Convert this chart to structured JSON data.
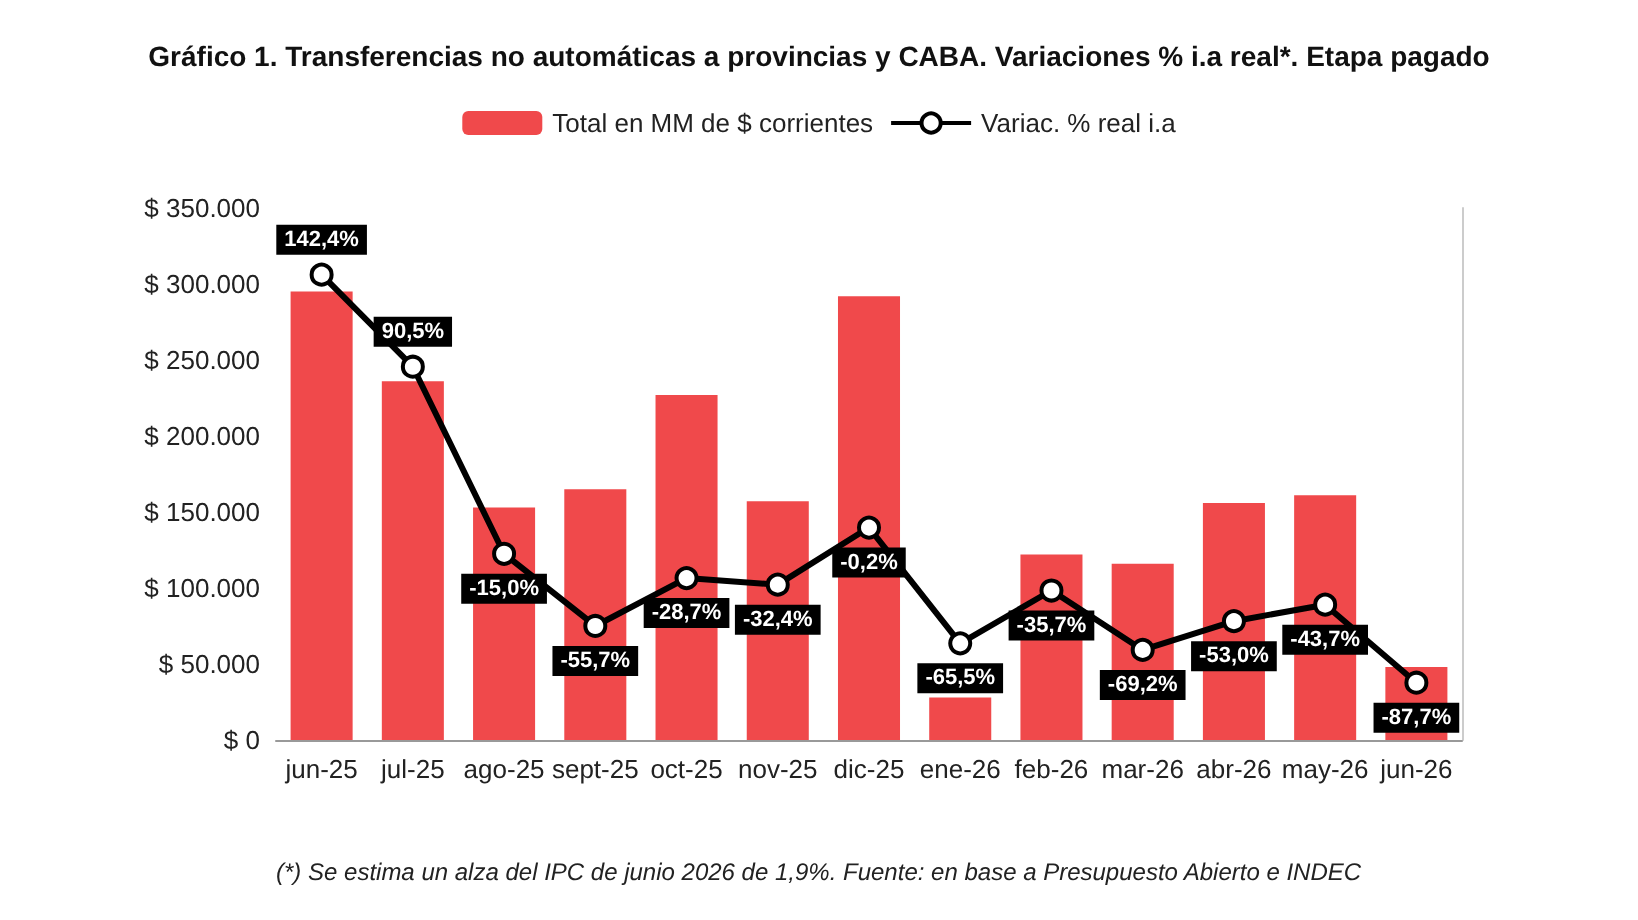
{
  "chart_data": {
    "type": "bar",
    "title": "Gráfico 1. Transferencias no automáticas a provincias y CABA. Variaciones % i.a real*. Etapa pagado",
    "categories": [
      "jun-25",
      "jul-25",
      "ago-25",
      "sept-25",
      "oct-25",
      "nov-25",
      "dic-25",
      "ene-26",
      "feb-26",
      "mar-26",
      "abr-26",
      "may-26",
      "jun-26"
    ],
    "series": [
      {
        "name": "Total en MM de $ corrientes",
        "color": "#f0494b",
        "values": [
          295000,
          236000,
          153000,
          165000,
          227000,
          157000,
          292000,
          28000,
          122000,
          116000,
          156000,
          161000,
          48000
        ]
      },
      {
        "name": "Variac. % real i.a",
        "type": "line",
        "axis": "y2",
        "color": "#000000",
        "marker": "circle",
        "values": [
          142.4,
          90.5,
          -15.0,
          -55.7,
          -28.7,
          -32.4,
          -0.2,
          -65.5,
          -35.7,
          -69.2,
          -53.0,
          -43.7,
          -87.7
        ],
        "value_labels": [
          "142,4%",
          "90,5%",
          "-15,0%",
          "-55,7%",
          "-28,7%",
          "-32,4%",
          "-0,2%",
          "-65,5%",
          "-35,7%",
          "-69,2%",
          "-53,0%",
          "-43,7%",
          "-87,7%"
        ]
      }
    ],
    "ylim": [
      0,
      350000
    ],
    "yticks": [
      {
        "value": 0,
        "label": "$ 0"
      },
      {
        "value": 50000,
        "label": "$ 50.000"
      },
      {
        "value": 100000,
        "label": "$ 100.000"
      },
      {
        "value": 150000,
        "label": "$ 150.000"
      },
      {
        "value": 200000,
        "label": "$ 200.000"
      },
      {
        "value": 250000,
        "label": "$ 250.000"
      },
      {
        "value": 300000,
        "label": "$ 300.000"
      },
      {
        "value": 350000,
        "label": "$ 350.000"
      }
    ],
    "y2lim": [
      -120,
      180
    ],
    "tick_labels": "xy",
    "legend": "top",
    "grid": false,
    "annotations": [
      "(*) Se estima un alza del IPC de junio 2026 de 1,9%. Fuente: en base a Presupuesto Abierto e INDEC"
    ]
  }
}
